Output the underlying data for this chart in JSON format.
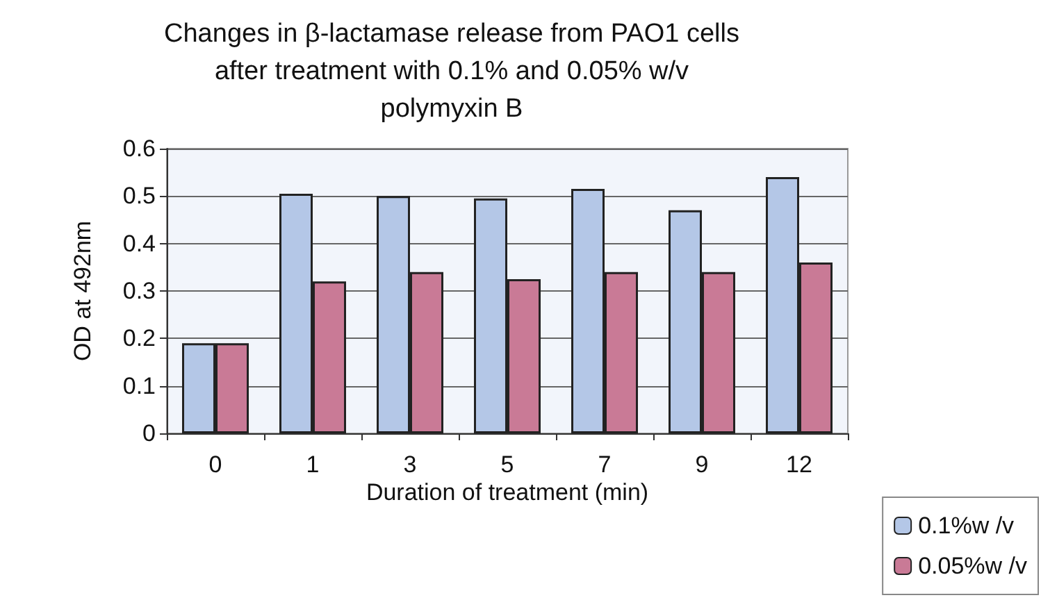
{
  "chart_data": {
    "type": "bar",
    "title": "Changes in β-lactamase release from PAO1 cells\nafter treatment with 0.1% and 0.05% w/v\npolymyxin B",
    "xlabel": "Duration of treatment (min)",
    "ylabel": "OD at 492nm",
    "categories": [
      "0",
      "1",
      "3",
      "5",
      "7",
      "9",
      "12"
    ],
    "series": [
      {
        "name": "0.1%w /v",
        "color": "#b4c7e7",
        "values": [
          0.19,
          0.505,
          0.5,
          0.495,
          0.515,
          0.47,
          0.54
        ]
      },
      {
        "name": "0.05%w /v",
        "color": "#c97a96",
        "values": [
          0.19,
          0.32,
          0.34,
          0.325,
          0.34,
          0.34,
          0.36
        ]
      }
    ],
    "ylim": [
      0,
      0.6
    ],
    "yticks": [
      0,
      0.1,
      0.2,
      0.3,
      0.4,
      0.5,
      0.6
    ],
    "grid": "y",
    "legend": "bottom right"
  }
}
